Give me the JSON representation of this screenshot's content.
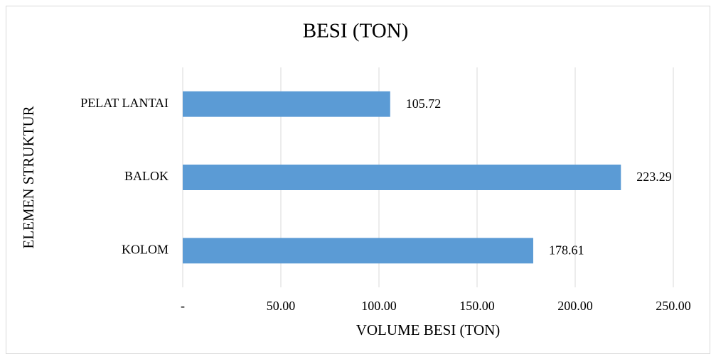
{
  "chart_data": {
    "type": "bar",
    "orientation": "horizontal",
    "title": "BESI (TON)",
    "x_label": "VOLUME BESI (TON)",
    "y_label": "ELEMEN STRUKTUR",
    "categories": [
      "KOLOM",
      "BALOK",
      "PELAT LANTAI"
    ],
    "values": [
      178.61,
      223.29,
      105.72
    ],
    "color": "#5b9bd5",
    "xlim": [
      0,
      250
    ],
    "xticks": [
      {
        "value": 0,
        "label": "-"
      },
      {
        "value": 50,
        "label": "50.00"
      },
      {
        "value": 100,
        "label": "100.00"
      },
      {
        "value": 150,
        "label": "150.00"
      },
      {
        "value": 200,
        "label": "200.00"
      },
      {
        "value": 250,
        "label": "250.00"
      }
    ],
    "grid": true
  }
}
